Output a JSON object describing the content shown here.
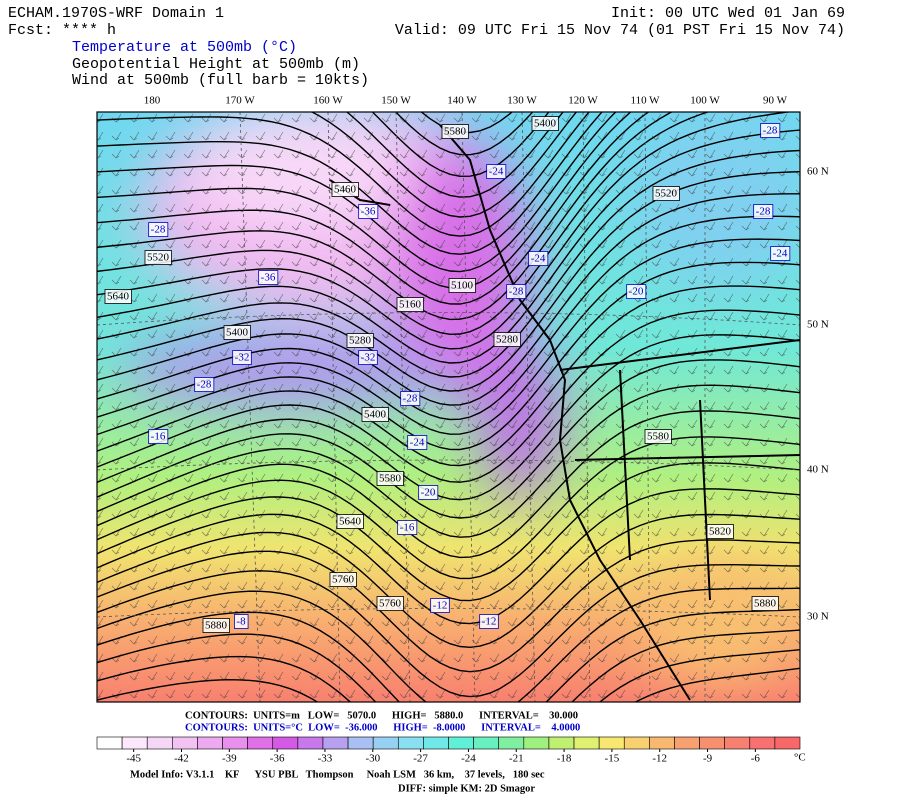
{
  "header": {
    "title": "ECHAM.1970S-WRF Domain 1",
    "forecast": "Fcst: **** h",
    "init": "Init: 00 UTC Wed 01 Jan 69",
    "valid": "Valid: 09 UTC Fri 15 Nov 74 (01 PST Fri 15 Nov 74)",
    "fields": [
      "Temperature at 500mb (°C)",
      "Geopotential Height at 500mb (m)",
      "Wind at 500mb (full barb = 10kts)"
    ]
  },
  "map": {
    "longitude_labels": [
      "180",
      "170 W",
      "160 W",
      "150 W",
      "140 W",
      "130 W",
      "120 W",
      "110 W",
      "100 W",
      "90 W"
    ],
    "latitude_labels": [
      "60 N",
      "50 N",
      "40 N",
      "30 N"
    ],
    "height_labels": [
      5580,
      5400,
      5460,
      5520,
      5640,
      5400,
      5280,
      5160,
      5100,
      5280,
      5520,
      5400,
      5580,
      5580,
      5640,
      5760,
      5760,
      5880,
      5820,
      5880
    ],
    "temperature_labels": [
      -28,
      -24,
      -36,
      -28,
      -28,
      -24,
      -24,
      -36,
      -28,
      -20,
      -32,
      -32,
      -28,
      -28,
      -24,
      -16,
      -20,
      -16,
      -12,
      -12,
      -8
    ]
  },
  "footer": {
    "contours": [
      "CONTOURS:  UNITS=m   LOW=   5070.0      HIGH=   5880.0      INTERVAL=    30.000",
      "CONTOURS:  UNITS=°C  LOW=  -36.000      HIGH=  -8.0000      INTERVAL=    4.0000"
    ],
    "colorbar": {
      "range": [
        -47.3,
        -3.2
      ],
      "ticks": [
        -45,
        -42,
        -39,
        -36,
        -33,
        -30,
        -27,
        -24,
        -21,
        -18,
        -15,
        -12,
        -9,
        -6
      ],
      "unit": "°C",
      "colors": [
        "#ffffff",
        "#fbe9fb",
        "#f6d6f6",
        "#f2c3f2",
        "#eeaaf0",
        "#e890ec",
        "#e070e8",
        "#d45ae6",
        "#c878ea",
        "#b8a0f0",
        "#a8c0f4",
        "#98d0f4",
        "#88e0f0",
        "#70e8e8",
        "#60f0d8",
        "#68f0c0",
        "#80f0a0",
        "#a0f080",
        "#c0f070",
        "#e0f070",
        "#f8e870",
        "#f8d070",
        "#f8b870",
        "#f8a070",
        "#f89070",
        "#f88070",
        "#f87070",
        "#f86868"
      ]
    },
    "model_info": "Model Info: V3.1.1    KF      YSU PBL   Thompson     Noah LSM   36 km,    37 levels,   180 sec",
    "diff": "DIFF: simple KM: 2D Smagor"
  }
}
